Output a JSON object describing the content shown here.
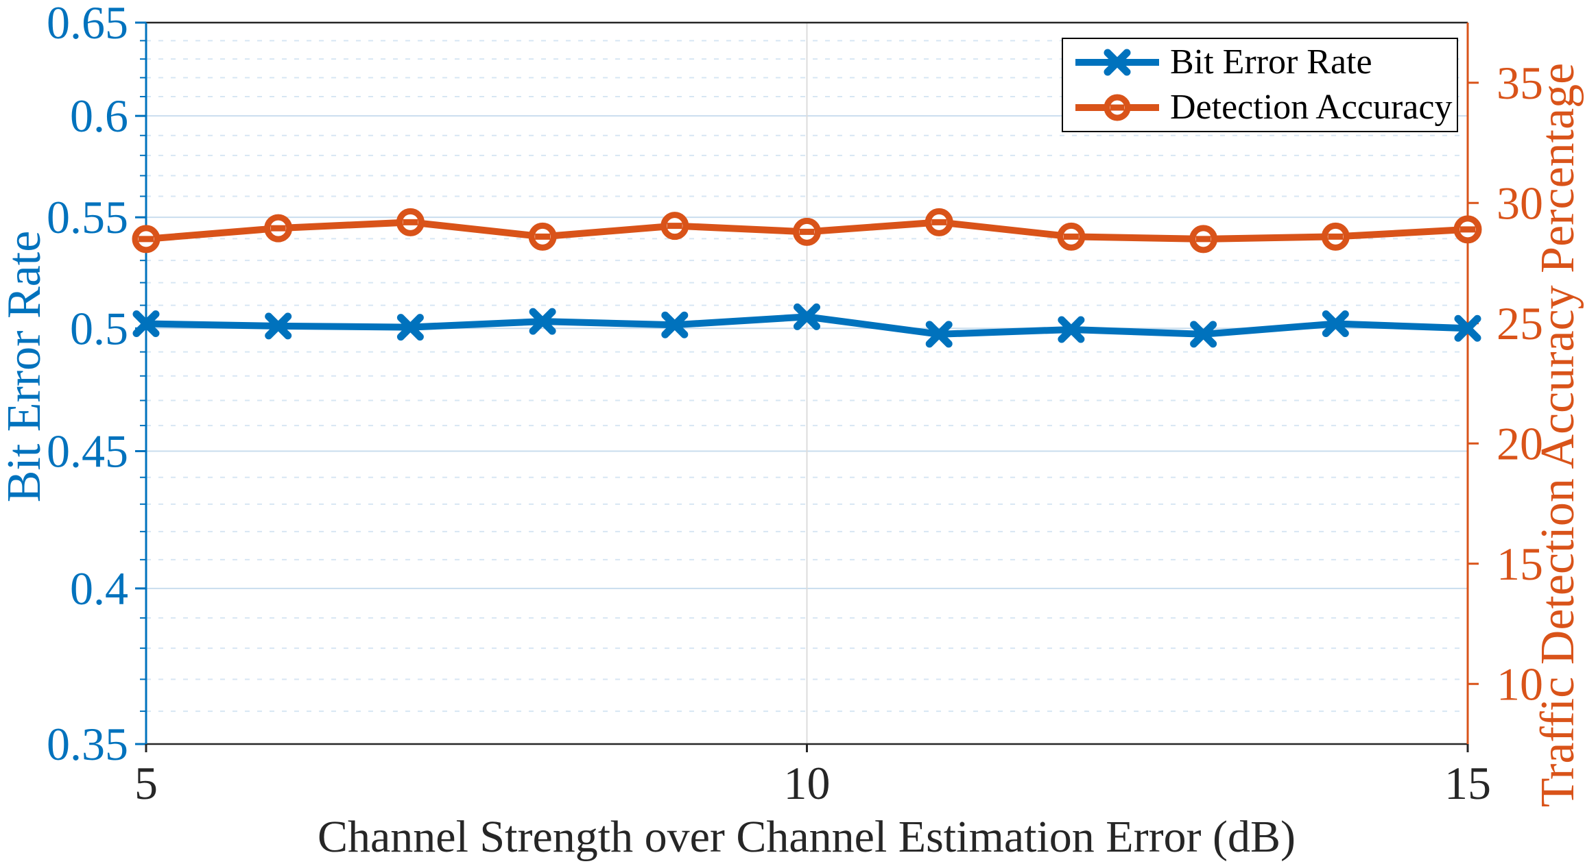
{
  "chart_data": {
    "type": "line",
    "title": "",
    "xlabel": "Channel Strength over Channel Estimation Error (dB)",
    "x_axis": {
      "min": 5,
      "max": 15,
      "ticks": [
        5,
        10,
        15
      ],
      "tick_labels": [
        "5",
        "10",
        "15"
      ],
      "grid_at": [
        10
      ]
    },
    "left_axis": {
      "label": "Bit Error Rate",
      "scale": "log",
      "min": 0.35,
      "max": 0.65,
      "ticks": [
        0.65,
        0.6,
        0.55,
        0.5,
        0.45,
        0.4,
        0.35
      ],
      "tick_labels": [
        "0.65",
        "0.6",
        "0.55",
        "0.5",
        "0.45",
        "0.4",
        "0.35"
      ],
      "minor_step": 0.01,
      "color": "#0072BD"
    },
    "right_axis": {
      "label": "Traffic Detection Accuracy Percentage",
      "scale": "linear",
      "min": 7.5,
      "max": 37.5,
      "ticks": [
        35,
        30,
        25,
        20,
        15,
        10
      ],
      "tick_labels": [
        "35",
        "30",
        "25",
        "20",
        "15",
        "10"
      ],
      "color": "#D95319"
    },
    "x": [
      5,
      6,
      7,
      8,
      9,
      10,
      11,
      12,
      13,
      14,
      15
    ],
    "series": [
      {
        "name": "Bit Error Rate",
        "axis": "left",
        "color": "#0072BD",
        "marker": "x",
        "values": [
          0.502,
          0.501,
          0.5005,
          0.503,
          0.5015,
          0.505,
          0.4975,
          0.4995,
          0.4975,
          0.502,
          0.5
        ]
      },
      {
        "name": "Detection Accuracy",
        "axis": "right",
        "color": "#D95319",
        "marker": "o",
        "values": [
          28.5,
          28.95,
          29.2,
          28.6,
          29.05,
          28.8,
          29.2,
          28.6,
          28.5,
          28.6,
          28.9
        ]
      }
    ],
    "legend": {
      "position": "top-right",
      "entries": [
        "Bit Error Rate",
        "Detection Accuracy"
      ]
    },
    "grid": {
      "y_major": true,
      "y_minor": true,
      "x_major": true
    },
    "colors": {
      "grid_major": "#c9ddee",
      "grid_minor": "#d7e6f3",
      "x_grid": "#dcdcdc",
      "axis_dark": "#262626",
      "background": "#ffffff"
    }
  }
}
